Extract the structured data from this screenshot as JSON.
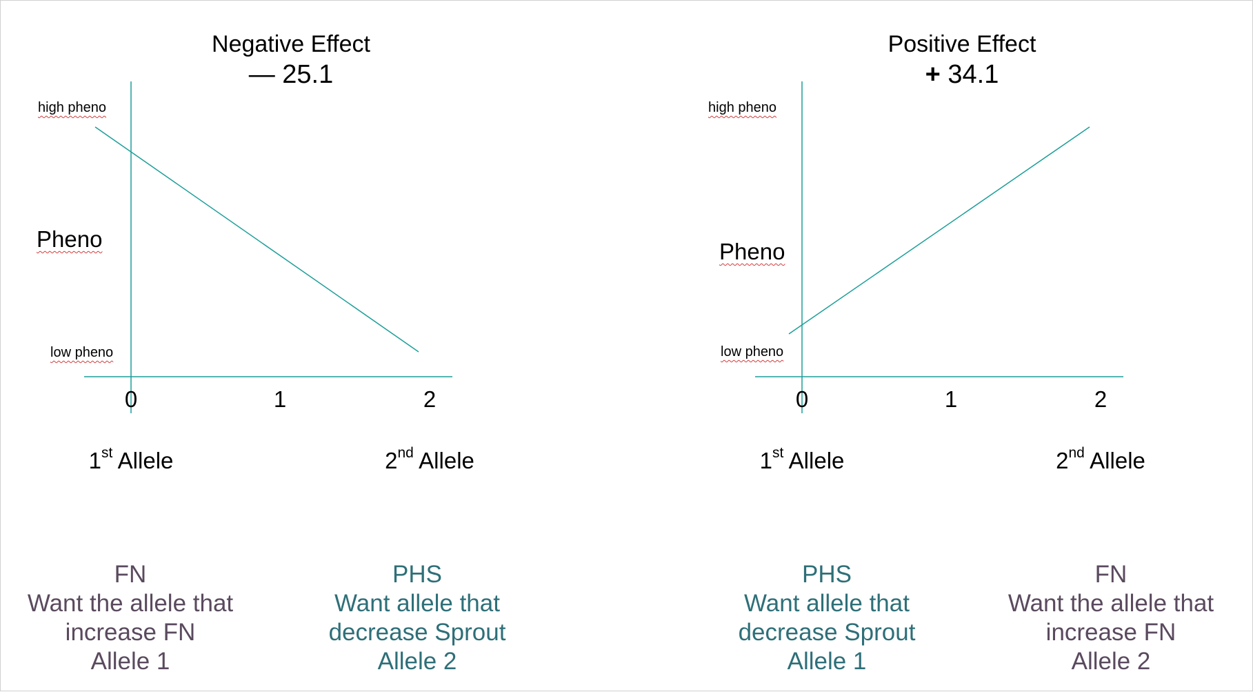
{
  "colors": {
    "axis": "#1b9e98",
    "teal_text": "#2e6f78",
    "purple_text": "#5a4a5e"
  },
  "left_panel": {
    "title": "Negative Effect",
    "effect": "— 25.1",
    "high_label": "high pheno",
    "low_label": "low pheno",
    "y_label": "Pheno",
    "ticks": [
      "0",
      "1",
      "2"
    ],
    "allele_1": {
      "num": "1",
      "sup": "st",
      "text": " Allele"
    },
    "allele_2": {
      "num": "2",
      "sup": "nd",
      "text": " Allele"
    }
  },
  "right_panel": {
    "title": "Positive Effect",
    "effect_sign": "+",
    "effect_value": " 34.1",
    "high_label": "high pheno",
    "low_label": "low pheno",
    "y_label": "Pheno",
    "ticks": [
      "0",
      "1",
      "2"
    ],
    "allele_1": {
      "num": "1",
      "sup": "st",
      "text": " Allele"
    },
    "allele_2": {
      "num": "2",
      "sup": "nd",
      "text": " Allele"
    }
  },
  "notes": [
    {
      "lines": [
        "FN",
        "Want the allele that",
        "increase FN",
        "Allele 1"
      ],
      "tone": "purple"
    },
    {
      "lines": [
        "PHS",
        "Want allele that",
        "decrease Sprout",
        "Allele 2"
      ],
      "tone": "teal"
    },
    {
      "lines": [
        "PHS",
        "Want allele that",
        "decrease Sprout",
        "Allele 1"
      ],
      "tone": "teal"
    },
    {
      "lines": [
        "FN",
        "Want the allele that",
        "increase FN",
        "Allele 2"
      ],
      "tone": "purple"
    }
  ]
}
